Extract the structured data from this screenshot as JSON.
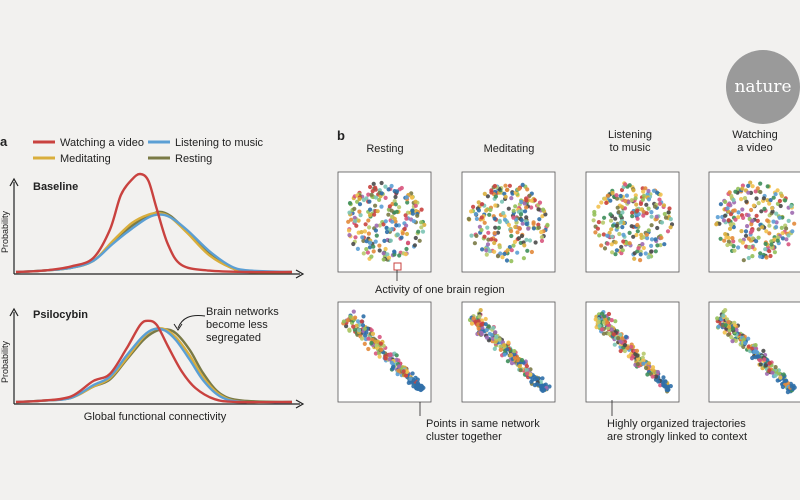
{
  "logo": "nature",
  "colors": {
    "video": "#c9423f",
    "music": "#5b9fd4",
    "meditating": "#d9ae3c",
    "resting": "#7a7a46"
  },
  "chart_data": [
    {
      "type": "line",
      "panel": "a",
      "subtitles": [
        "Baseline",
        "Psilocybin"
      ],
      "xlabel": "Global functional connectivity",
      "ylabel": "Probability",
      "xlim": [
        0,
        1
      ],
      "legend": [
        {
          "name": "Watching a video",
          "color": "#c9423f"
        },
        {
          "name": "Listening to music",
          "color": "#5b9fd4"
        },
        {
          "name": "Meditating",
          "color": "#d9ae3c"
        },
        {
          "name": "Resting",
          "color": "#7a7a46"
        }
      ],
      "annotation": "Brain networks\nbecome less\nsegregated",
      "series": [
        {
          "name": "Watching a video",
          "subplot": "Baseline",
          "color": "#c9423f",
          "x": [
            0,
            0.1,
            0.2,
            0.28,
            0.34,
            0.38,
            0.42,
            0.45,
            0.48,
            0.51,
            0.55,
            0.6,
            0.7,
            0.85,
            1
          ],
          "y": [
            0,
            0.01,
            0.04,
            0.1,
            0.3,
            0.55,
            0.66,
            0.7,
            0.65,
            0.45,
            0.2,
            0.05,
            0.01,
            0,
            0
          ]
        },
        {
          "name": "Listening to music",
          "subplot": "Baseline",
          "color": "#5b9fd4",
          "x": [
            0,
            0.1,
            0.2,
            0.28,
            0.35,
            0.42,
            0.48,
            0.52,
            0.56,
            0.62,
            0.7,
            0.78,
            0.85,
            1
          ],
          "y": [
            0,
            0.01,
            0.03,
            0.08,
            0.2,
            0.31,
            0.39,
            0.41,
            0.39,
            0.3,
            0.15,
            0.04,
            0.01,
            0
          ]
        },
        {
          "name": "Meditating",
          "subplot": "Baseline",
          "color": "#d9ae3c",
          "x": [
            0,
            0.1,
            0.2,
            0.28,
            0.35,
            0.42,
            0.48,
            0.52,
            0.56,
            0.62,
            0.7,
            0.78,
            0.85,
            1
          ],
          "y": [
            0,
            0.01,
            0.03,
            0.08,
            0.22,
            0.35,
            0.41,
            0.42,
            0.39,
            0.28,
            0.12,
            0.03,
            0,
            0
          ]
        },
        {
          "name": "Resting",
          "subplot": "Baseline",
          "color": "#7a7a46",
          "x": [
            0,
            0.1,
            0.2,
            0.28,
            0.35,
            0.42,
            0.48,
            0.52,
            0.56,
            0.62,
            0.7,
            0.78,
            0.85,
            1
          ],
          "y": [
            0,
            0.01,
            0.03,
            0.08,
            0.21,
            0.33,
            0.4,
            0.43,
            0.4,
            0.29,
            0.13,
            0.03,
            0,
            0
          ]
        },
        {
          "name": "Watching a video",
          "subplot": "Psilocybin",
          "color": "#c9423f",
          "x": [
            0,
            0.1,
            0.2,
            0.28,
            0.34,
            0.4,
            0.45,
            0.48,
            0.51,
            0.55,
            0.6,
            0.65,
            0.72,
            0.8,
            1
          ],
          "y": [
            0,
            0.01,
            0.04,
            0.15,
            0.2,
            0.38,
            0.55,
            0.58,
            0.55,
            0.4,
            0.22,
            0.1,
            0.02,
            0,
            0
          ]
        },
        {
          "name": "Listening to music",
          "subplot": "Psilocybin",
          "color": "#5b9fd4",
          "x": [
            0,
            0.1,
            0.2,
            0.28,
            0.34,
            0.4,
            0.46,
            0.5,
            0.54,
            0.58,
            0.63,
            0.68,
            0.74,
            0.82,
            1
          ],
          "y": [
            0,
            0.01,
            0.03,
            0.12,
            0.18,
            0.33,
            0.47,
            0.52,
            0.51,
            0.44,
            0.3,
            0.15,
            0.04,
            0,
            0
          ]
        },
        {
          "name": "Meditating",
          "subplot": "Psilocybin",
          "color": "#d9ae3c",
          "x": [
            0,
            0.1,
            0.2,
            0.28,
            0.34,
            0.4,
            0.46,
            0.5,
            0.54,
            0.58,
            0.63,
            0.68,
            0.74,
            0.82,
            1
          ],
          "y": [
            0,
            0.01,
            0.03,
            0.11,
            0.17,
            0.31,
            0.46,
            0.52,
            0.52,
            0.46,
            0.33,
            0.17,
            0.05,
            0,
            0
          ]
        },
        {
          "name": "Resting",
          "subplot": "Psilocybin",
          "color": "#7a7a46",
          "x": [
            0,
            0.1,
            0.2,
            0.28,
            0.34,
            0.4,
            0.46,
            0.5,
            0.54,
            0.58,
            0.63,
            0.68,
            0.74,
            0.82,
            1
          ],
          "y": [
            0,
            0.01,
            0.03,
            0.11,
            0.16,
            0.3,
            0.44,
            0.5,
            0.52,
            0.49,
            0.37,
            0.2,
            0.06,
            0.01,
            0
          ]
        }
      ]
    },
    {
      "type": "scatter",
      "panel": "b",
      "conditions": [
        "Resting",
        "Meditating",
        "Listening\nto music",
        "Watching\na video"
      ],
      "rows": [
        "Baseline",
        "Psilocybin"
      ],
      "annotations": [
        "Activity of one brain region",
        "Points in same network\ncluster together",
        "Highly organized trajectories\nare strongly linked to context"
      ],
      "point_colors": [
        "#c9423f",
        "#5b9fd4",
        "#d9ae3c",
        "#7a7a46",
        "#3e8e5a",
        "#e28a3b",
        "#7bc4b5",
        "#9e6ab0",
        "#2f6fa8",
        "#b7c96b",
        "#d8577e",
        "#4a4a4a",
        "#93c05a",
        "#f2c14e"
      ]
    }
  ]
}
